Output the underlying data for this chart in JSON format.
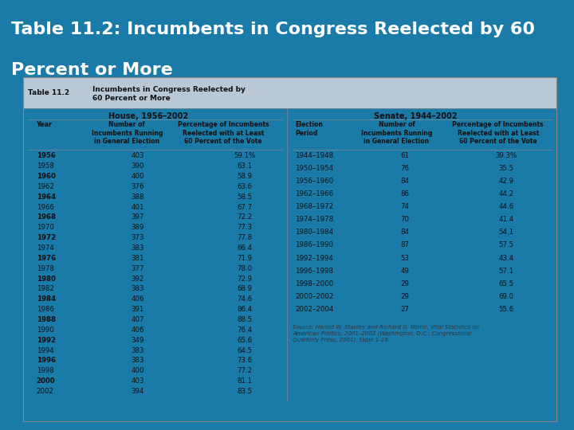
{
  "title_line1": "Table 11.2: Incumbents in Congress Reelected by 60",
  "title_line2": "Percent or More",
  "title_bg": "#1a7aa8",
  "title_color": "#ffffff",
  "table_bg": "#f5e6c8",
  "outer_bg": "#1a7aa8",
  "house_header": "House, 1956–2002",
  "senate_header": "Senate, 1944–2002",
  "house_data": [
    [
      "1956",
      "403",
      "59.1%"
    ],
    [
      "1958",
      "390",
      "63.1"
    ],
    [
      "1960",
      "400",
      "58.9"
    ],
    [
      "1962",
      "376",
      "63.6"
    ],
    [
      "1964",
      "388",
      "58.5"
    ],
    [
      "1966",
      "401",
      "67.7"
    ],
    [
      "1968",
      "397",
      "72.2"
    ],
    [
      "1970",
      "389",
      "77.3"
    ],
    [
      "1972",
      "373",
      "77.8"
    ],
    [
      "1974",
      "383",
      "66.4"
    ],
    [
      "1976",
      "381",
      "71.9"
    ],
    [
      "1978",
      "377",
      "78.0"
    ],
    [
      "1980",
      "392",
      "72.9"
    ],
    [
      "1982",
      "383",
      "68.9"
    ],
    [
      "1984",
      "406",
      "74.6"
    ],
    [
      "1986",
      "391",
      "86.4"
    ],
    [
      "1988",
      "407",
      "88.5"
    ],
    [
      "1990",
      "406",
      "76.4"
    ],
    [
      "1992",
      "349",
      "65.6"
    ],
    [
      "1994",
      "383",
      "64.5"
    ],
    [
      "1996",
      "383",
      "73.6"
    ],
    [
      "1998",
      "400",
      "77.2"
    ],
    [
      "2000",
      "403",
      "81.1"
    ],
    [
      "2002",
      "394",
      "83.5"
    ]
  ],
  "senate_data": [
    [
      "1944–1948",
      "61",
      "39.3%"
    ],
    [
      "1950–1954",
      "76",
      "35.5"
    ],
    [
      "1956–1960",
      "84",
      "42.9"
    ],
    [
      "1962–1966",
      "86",
      "44.2"
    ],
    [
      "1968–1972",
      "74",
      "44.6"
    ],
    [
      "1974–1978",
      "70",
      "41.4"
    ],
    [
      "1980–1984",
      "84",
      "54.1"
    ],
    [
      "1986–1990",
      "87",
      "57.5"
    ],
    [
      "1992–1994",
      "53",
      "43.4"
    ],
    [
      "1996–1998",
      "49",
      "57.1"
    ],
    [
      "1998–2000",
      "29",
      "65.5"
    ],
    [
      "2000–2002",
      "29",
      "69.0"
    ],
    [
      "2002–2004",
      "27",
      "55.6"
    ]
  ],
  "source_text": "Source: Harold W. Stanley and Richard G. Niemi, Vital Statistics on\nAmerican Politics, 2001–2002 (Washington, D.C.: Congressional\nQuarterly Press, 2001), table 1-18."
}
